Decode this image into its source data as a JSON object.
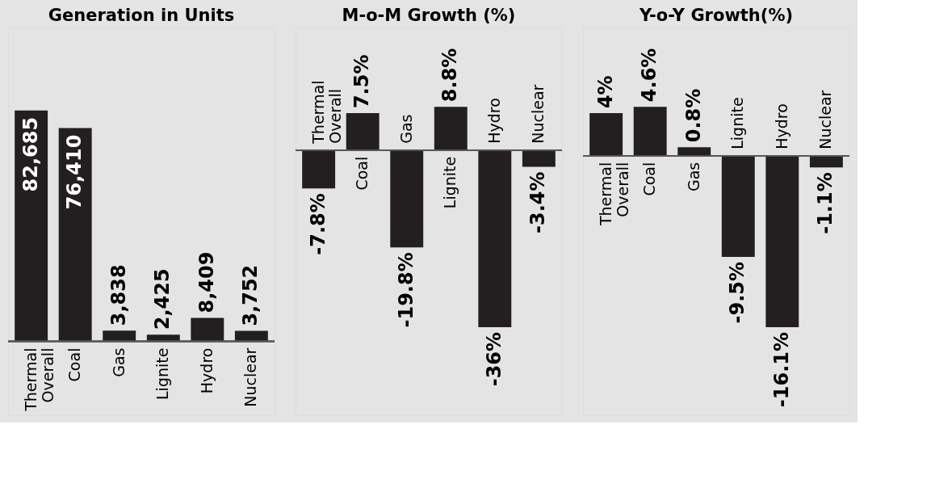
{
  "chart_data": [
    {
      "type": "bar",
      "title": "Generation in Units",
      "categories": [
        "Thermal Overall",
        "Coal",
        "Gas",
        "Lignite",
        "Hydro",
        "Nuclear"
      ],
      "values": [
        82685,
        76410,
        3838,
        2425,
        8409,
        3752
      ],
      "color": "#231f20",
      "value_labels": [
        "82,685",
        "76,410",
        "3,838",
        "2,425",
        "8,409",
        "3,752"
      ]
    },
    {
      "type": "bar",
      "title": "M-o-M Growth (%)",
      "categories": [
        "Thermal Overall",
        "Coal",
        "Gas",
        "Lignite",
        "Hydro",
        "Nuclear"
      ],
      "values": [
        -7.8,
        7.5,
        -19.8,
        8.8,
        -36,
        -3.4
      ],
      "color": "#231f20",
      "value_labels": [
        "-7.8%",
        "7.5%",
        "-19.8%",
        "8.8%",
        "-36%",
        "-3.4%"
      ]
    },
    {
      "type": "bar",
      "title": "Y-o-Y Growth(%)",
      "categories": [
        "Thermal Overall",
        "Coal",
        "Gas",
        "Lignite",
        "Hydro",
        "Nuclear"
      ],
      "values": [
        4,
        4.6,
        0.8,
        -9.5,
        -16.1,
        -1.1
      ],
      "color": "#231f20",
      "value_labels": [
        "4%",
        "4.6%",
        "0.8%",
        "-9.5%",
        "-16.1%",
        "-1.1%"
      ]
    }
  ]
}
